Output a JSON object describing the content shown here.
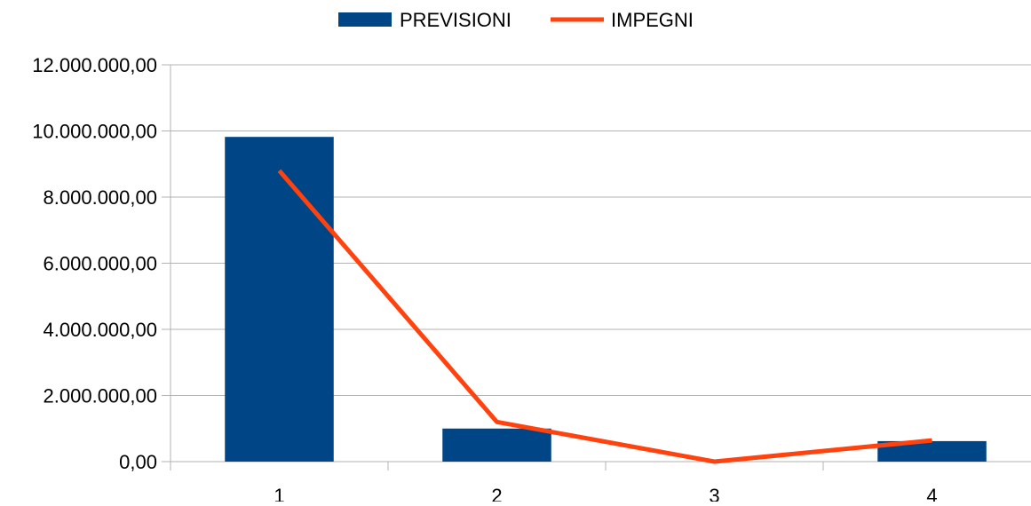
{
  "chart_data": {
    "type": "bar",
    "categories": [
      "1",
      "2",
      "3",
      "4"
    ],
    "series": [
      {
        "name": "PREVISIONI",
        "type": "bar",
        "color": "#004586",
        "values": [
          9820000,
          1000000,
          0,
          620000
        ]
      },
      {
        "name": "IMPEGNI",
        "type": "line",
        "color": "#ff420e",
        "values": [
          8800000,
          1200000,
          0,
          640000
        ]
      }
    ],
    "y_ticks": [
      "0,00",
      "2.000.000,00",
      "4.000.000,00",
      "6.000.000,00",
      "8.000.000,00",
      "10.000.000,00",
      "12.000.000,00"
    ],
    "ylim": [
      0,
      12000000
    ],
    "grid": true,
    "legend_position": "top-center"
  }
}
